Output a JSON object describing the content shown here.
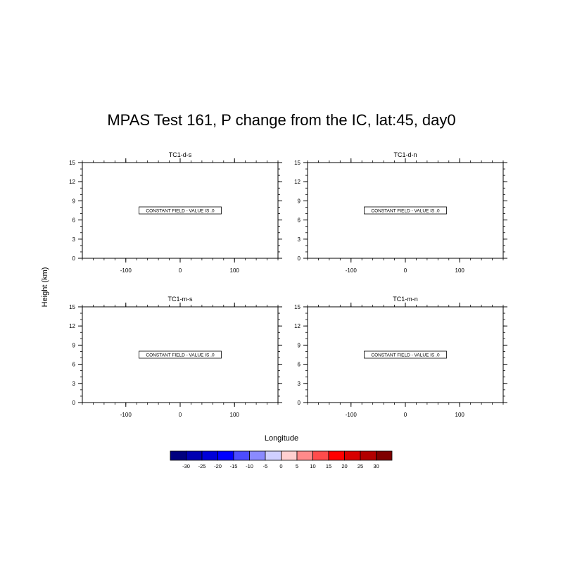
{
  "title": "MPAS Test 161, P change from the IC, lat:45, day0",
  "ylabel": "Height (km)",
  "xlabel": "Longitude",
  "chart_data": {
    "type": "heatmap",
    "x_ticks": [
      -100,
      0,
      100
    ],
    "y_ticks": [
      0,
      3,
      6,
      9,
      12,
      15
    ],
    "xlim": [
      -180,
      180
    ],
    "ylim": [
      0,
      15
    ],
    "panels": [
      {
        "title": "TC1-d-s",
        "message": "CONSTANT FIELD - VALUE IS .0",
        "value": 0
      },
      {
        "title": "TC1-d-n",
        "message": "CONSTANT FIELD - VALUE IS .0",
        "value": 0
      },
      {
        "title": "TC1-m-s",
        "message": "CONSTANT FIELD - VALUE IS .0",
        "value": 0
      },
      {
        "title": "TC1-m-n",
        "message": "CONSTANT FIELD - VALUE IS .0",
        "value": 0
      }
    ],
    "colorbar": {
      "levels": [
        -30,
        -25,
        -20,
        -15,
        -10,
        -5,
        0,
        5,
        10,
        15,
        20,
        25,
        30
      ],
      "colors": [
        "#00007f",
        "#0000b2",
        "#0000d8",
        "#0000ff",
        "#4c4cff",
        "#8a8aff",
        "#d0d0ff",
        "#ffd0d0",
        "#ff8a8a",
        "#ff4c4c",
        "#ff0000",
        "#d80000",
        "#b20000",
        "#7f0000"
      ]
    }
  }
}
